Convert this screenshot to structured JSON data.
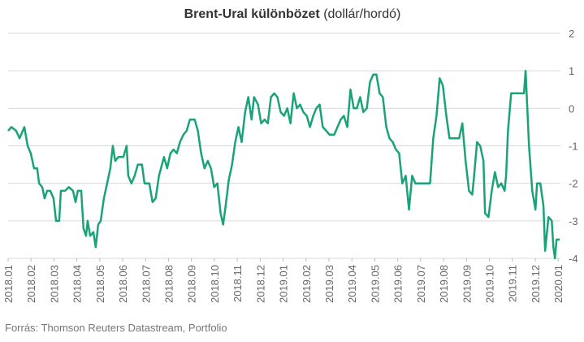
{
  "chart_data": {
    "type": "line",
    "title": "Brent-Ural különbözet",
    "subtitle": "(dollár/hordó)",
    "source": "Forrás: Thomson Reuters Datastream, Portfolio",
    "x": [
      0,
      0.14,
      0.35,
      0.5,
      0.71,
      0.85,
      0.99,
      1.13,
      1.27,
      1.35,
      1.49,
      1.59,
      1.7,
      1.84,
      1.98,
      2.09,
      2.23,
      2.3,
      2.48,
      2.65,
      2.83,
      2.94,
      3.04,
      3.19,
      3.29,
      3.4,
      3.47,
      3.58,
      3.72,
      3.82,
      3.93,
      4.04,
      4.18,
      4.32,
      4.46,
      4.57,
      4.67,
      4.81,
      5.03,
      5.17,
      5.24,
      5.38,
      5.52,
      5.66,
      5.84,
      5.95,
      6.16,
      6.3,
      6.44,
      6.58,
      6.8,
      6.94,
      7.08,
      7.22,
      7.36,
      7.5,
      7.65,
      7.79,
      7.93,
      8.14,
      8.28,
      8.42,
      8.57,
      8.71,
      8.85,
      8.99,
      9.13,
      9.27,
      9.38,
      9.49,
      9.63,
      9.77,
      9.91,
      10.05,
      10.19,
      10.34,
      10.48,
      10.62,
      10.73,
      10.9,
      11.04,
      11.19,
      11.33,
      11.47,
      11.61,
      11.75,
      11.89,
      12.04,
      12.18,
      12.32,
      12.46,
      12.6,
      12.74,
      12.88,
      13.03,
      13.17,
      13.31,
      13.45,
      13.59,
      13.73,
      13.88,
      14.02,
      14.23,
      14.37,
      14.51,
      14.65,
      14.8,
      14.94,
      15.08,
      15.22,
      15.36,
      15.5,
      15.65,
      15.79,
      15.93,
      16.07,
      16.21,
      16.35,
      16.5,
      16.64,
      16.78,
      16.92,
      17.06,
      17.2,
      17.35,
      17.49,
      17.63,
      17.77,
      17.91,
      18.05,
      18.27,
      18.41,
      18.55,
      18.69,
      18.83,
      18.97,
      19.12,
      19.26,
      19.4,
      19.54,
      19.68,
      19.82,
      19.96,
      20.11,
      20.25,
      20.32,
      20.46,
      20.6,
      20.74,
      20.81,
      20.96,
      21.1,
      21.24,
      21.38,
      21.52,
      21.66,
      21.73,
      21.81,
      21.95,
      22.09,
      22.3,
      22.51,
      22.58,
      22.73,
      22.87,
      23.01,
      23.08,
      23.22,
      23.36,
      23.43,
      23.58,
      23.72,
      23.79,
      23.86,
      23.93,
      24.07
    ],
    "series": [
      {
        "name": "Brent-Ural különbözet",
        "color": "#1aa37a",
        "values": [
          -0.6,
          -0.5,
          -0.6,
          -0.8,
          -0.5,
          -1.0,
          -1.2,
          -1.6,
          -1.6,
          -2.0,
          -2.1,
          -2.4,
          -2.2,
          -2.2,
          -2.4,
          -3.0,
          -3.0,
          -2.2,
          -2.2,
          -2.1,
          -2.2,
          -2.5,
          -2.2,
          -2.2,
          -3.2,
          -3.4,
          -3.0,
          -3.4,
          -3.3,
          -3.7,
          -3.1,
          -3.0,
          -2.4,
          -2.0,
          -1.6,
          -1.0,
          -1.4,
          -1.3,
          -1.3,
          -1.0,
          -1.8,
          -2.0,
          -1.8,
          -1.5,
          -1.5,
          -2.0,
          -2.0,
          -2.5,
          -2.4,
          -1.8,
          -1.3,
          -1.6,
          -1.2,
          -1.1,
          -1.2,
          -0.9,
          -0.7,
          -0.6,
          -0.3,
          -0.3,
          -0.6,
          -1.2,
          -1.6,
          -1.4,
          -1.6,
          -2.1,
          -2.0,
          -2.8,
          -3.1,
          -2.6,
          -1.9,
          -1.5,
          -0.9,
          -0.5,
          -0.9,
          -0.1,
          0.3,
          -0.3,
          0.3,
          0.1,
          -0.4,
          -0.3,
          -0.4,
          0.3,
          0.4,
          0.3,
          -0.1,
          -0.2,
          0,
          -0.4,
          0.4,
          0,
          0.1,
          -0.1,
          -0.2,
          -0.5,
          -0.2,
          0,
          0.1,
          -0.5,
          -0.6,
          -0.7,
          -0.7,
          -0.5,
          -0.3,
          -0.2,
          -0.5,
          0.5,
          0,
          0,
          0.3,
          -0.1,
          0,
          0.7,
          0.9,
          0.9,
          0.4,
          0.3,
          -0.5,
          -0.8,
          -0.9,
          -1.1,
          -1.2,
          -2.0,
          -1.8,
          -2.7,
          -1.8,
          -2.0,
          -2.0,
          -2.0,
          -2.0,
          -2.0,
          -0.8,
          -0.2,
          0.8,
          0.6,
          -0.2,
          -0.8,
          -0.8,
          -0.8,
          -0.8,
          -0.4,
          -1.4,
          -2.2,
          -2.3,
          -1.9,
          -0.9,
          -1.0,
          -1.4,
          -2.8,
          -2.9,
          -2.2,
          -1.7,
          -2.1,
          -2.0,
          -2.2,
          -1.8,
          -0.6,
          0.4,
          0.4,
          0.4,
          0.4,
          1.0,
          -1.0,
          -2.2,
          -2.7,
          -2.0,
          -2.0,
          -2.6,
          -3.8,
          -2.9,
          -3.0,
          -3.7,
          -4.0,
          -3.5,
          -3.5
        ]
      }
    ],
    "xlim": [
      0,
      24.1
    ],
    "xticks": [
      {
        "value": 0,
        "label": "2018.01"
      },
      {
        "value": 1,
        "label": "2018.02"
      },
      {
        "value": 2,
        "label": "2018.03"
      },
      {
        "value": 3,
        "label": "2018.04"
      },
      {
        "value": 4,
        "label": "2018.05"
      },
      {
        "value": 5,
        "label": "2018.06"
      },
      {
        "value": 6,
        "label": "2018.07"
      },
      {
        "value": 7,
        "label": "2018.08"
      },
      {
        "value": 8,
        "label": "2018.09"
      },
      {
        "value": 9,
        "label": "2018.10"
      },
      {
        "value": 10,
        "label": "2018.11"
      },
      {
        "value": 11,
        "label": "2018.12"
      },
      {
        "value": 12,
        "label": "2019.01"
      },
      {
        "value": 13,
        "label": "2019.02"
      },
      {
        "value": 14,
        "label": "2019.03"
      },
      {
        "value": 15,
        "label": "2019.04"
      },
      {
        "value": 16,
        "label": "2019.05"
      },
      {
        "value": 17,
        "label": "2019.06"
      },
      {
        "value": 18,
        "label": "2019.07"
      },
      {
        "value": 19,
        "label": "2019.08"
      },
      {
        "value": 20,
        "label": "2019.09"
      },
      {
        "value": 21,
        "label": "2019.10"
      },
      {
        "value": 22,
        "label": "2019.11"
      },
      {
        "value": 23,
        "label": "2019.12"
      },
      {
        "value": 24,
        "label": "2020.01"
      }
    ],
    "ylim": [
      -4,
      2
    ],
    "yticks": [
      2,
      1,
      0,
      -1,
      -2,
      -3,
      -4
    ],
    "grid": true
  }
}
